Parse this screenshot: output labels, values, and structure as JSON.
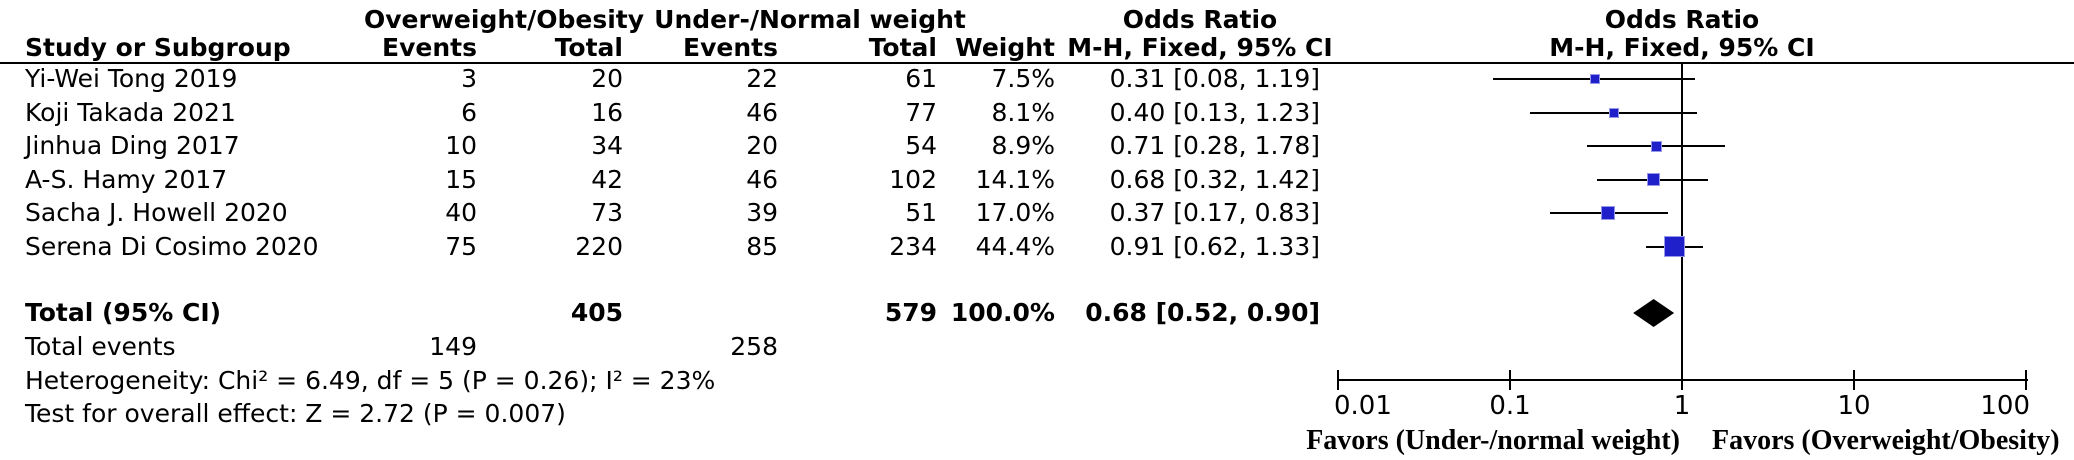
{
  "table": {
    "headers": {
      "study": "Study or Subgroup",
      "group1": "Overweight/Obesity",
      "group2": "Under-/Normal weight",
      "events": "Events",
      "total": "Total",
      "weight": "Weight",
      "or_title": "Odds Ratio",
      "or_subtitle": "M-H, Fixed, 95% CI",
      "plot_title": "Odds Ratio",
      "plot_subtitle": "M-H, Fixed, 95% CI"
    },
    "total_row": {
      "label": "Total (95% CI)",
      "total1": "405",
      "total2": "579",
      "weight": "100.0%",
      "or_text": "0.68 [0.52, 0.90]"
    },
    "total_events": {
      "label": "Total events",
      "events1": "149",
      "events2": "258"
    },
    "heterogeneity": "Heterogeneity: Chi² = 6.49, df = 5 (P = 0.26); I² = 23%",
    "overall_effect": "Test for overall effect: Z = 2.72 (P = 0.007)"
  },
  "chart_data": {
    "type": "forest",
    "scale": "log10",
    "axis": {
      "min": 0.01,
      "max": 100,
      "ticks": [
        0.01,
        0.1,
        1,
        10,
        100
      ],
      "tick_labels": [
        "0.01",
        "0.1",
        "1",
        "10",
        "100"
      ],
      "null_line": 1
    },
    "studies": [
      {
        "name": "Yi-Wei Tong 2019",
        "events_exp": 3,
        "total_exp": 20,
        "events_ctrl": 22,
        "total_ctrl": 61,
        "weight": 7.5,
        "weight_text": "7.5%",
        "or": 0.31,
        "ci_low": 0.08,
        "ci_high": 1.19,
        "or_text": "0.31 [0.08, 1.19]"
      },
      {
        "name": "Koji Takada 2021",
        "events_exp": 6,
        "total_exp": 16,
        "events_ctrl": 46,
        "total_ctrl": 77,
        "weight": 8.1,
        "weight_text": "8.1%",
        "or": 0.4,
        "ci_low": 0.13,
        "ci_high": 1.23,
        "or_text": "0.40 [0.13, 1.23]"
      },
      {
        "name": "Jinhua Ding 2017",
        "events_exp": 10,
        "total_exp": 34,
        "events_ctrl": 20,
        "total_ctrl": 54,
        "weight": 8.9,
        "weight_text": "8.9%",
        "or": 0.71,
        "ci_low": 0.28,
        "ci_high": 1.78,
        "or_text": "0.71 [0.28, 1.78]"
      },
      {
        "name": "A-S. Hamy 2017",
        "events_exp": 15,
        "total_exp": 42,
        "events_ctrl": 46,
        "total_ctrl": 102,
        "weight": 14.1,
        "weight_text": "14.1%",
        "or": 0.68,
        "ci_low": 0.32,
        "ci_high": 1.42,
        "or_text": "0.68 [0.32, 1.42]"
      },
      {
        "name": "Sacha J. Howell 2020",
        "events_exp": 40,
        "total_exp": 73,
        "events_ctrl": 39,
        "total_ctrl": 51,
        "weight": 17.0,
        "weight_text": "17.0%",
        "or": 0.37,
        "ci_low": 0.17,
        "ci_high": 0.83,
        "or_text": "0.37 [0.17, 0.83]"
      },
      {
        "name": "Serena Di Cosimo 2020",
        "events_exp": 75,
        "total_exp": 220,
        "events_ctrl": 85,
        "total_ctrl": 234,
        "weight": 44.4,
        "weight_text": "44.4%",
        "or": 0.91,
        "ci_low": 0.62,
        "ci_high": 1.33,
        "or_text": "0.91 [0.62, 1.33]"
      }
    ],
    "total": {
      "or": 0.68,
      "ci_low": 0.52,
      "ci_high": 0.9
    },
    "footer_left": "Favors (Under-/normal weight)",
    "footer_right": "Favors (Overweight/Obesity)"
  },
  "colors": {
    "marker_fill": "#2020CB",
    "marker_border": "#9898E8",
    "diamond": "#000000",
    "line": "#000000",
    "text": "#000000",
    "background": "#FFFFFF"
  }
}
